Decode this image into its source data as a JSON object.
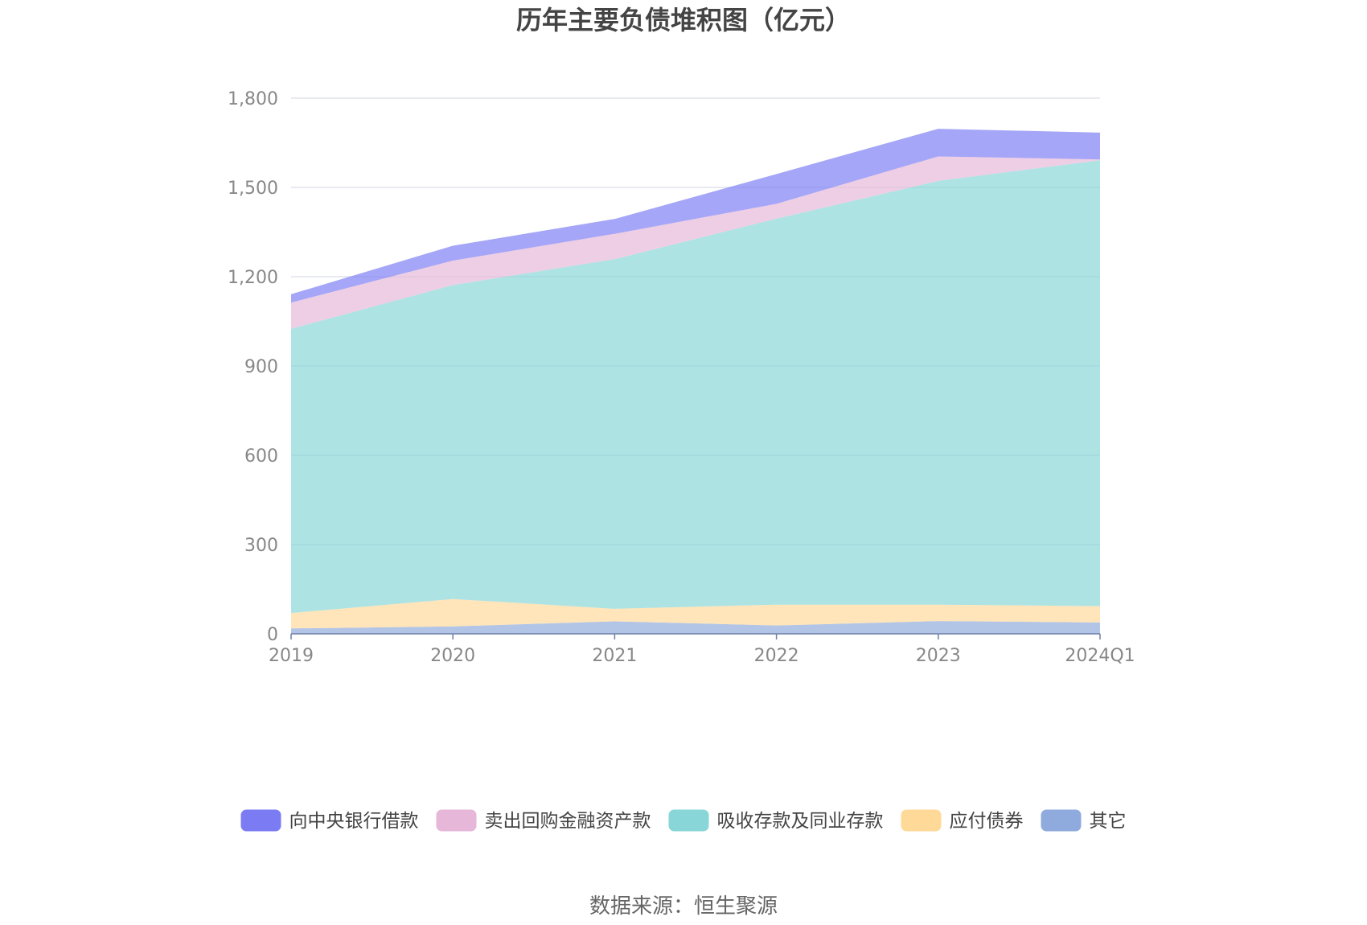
{
  "chart_data": {
    "type": "area",
    "stacked": true,
    "title": "历年主要负债堆积图（亿元）",
    "categories": [
      "2019",
      "2020",
      "2021",
      "2022",
      "2023",
      "2024Q1"
    ],
    "ylim": [
      0,
      1800
    ],
    "yticks": [
      "0",
      "300",
      "600",
      "900",
      "1,200",
      "1,500",
      "1,800"
    ],
    "ytick_values": [
      0,
      300,
      600,
      900,
      1200,
      1500,
      1800
    ],
    "grid": true,
    "legend_position": "bottom",
    "series": [
      {
        "name": "其它",
        "color": "#8faadc",
        "values": [
          18,
          25,
          42,
          28,
          43,
          38
        ]
      },
      {
        "name": "应付债券",
        "color": "#ffd998",
        "values": [
          52,
          92,
          42,
          70,
          55,
          55
        ]
      },
      {
        "name": "吸收存款及同业存款",
        "color": "#88d6d7",
        "values": [
          955,
          1055,
          1175,
          1297,
          1424,
          1498
        ]
      },
      {
        "name": "卖出回购金融资产款",
        "color": "#e6b7d8",
        "values": [
          88,
          82,
          85,
          50,
          82,
          3
        ]
      },
      {
        "name": "向中央银行借款",
        "color": "#7b7cf3",
        "values": [
          28,
          50,
          50,
          100,
          93,
          90
        ]
      }
    ],
    "legend_order": [
      "向中央银行借款",
      "卖出回购金融资产款",
      "吸收存款及同业存款",
      "应付债券",
      "其它"
    ],
    "source": "数据来源：恒生聚源"
  }
}
